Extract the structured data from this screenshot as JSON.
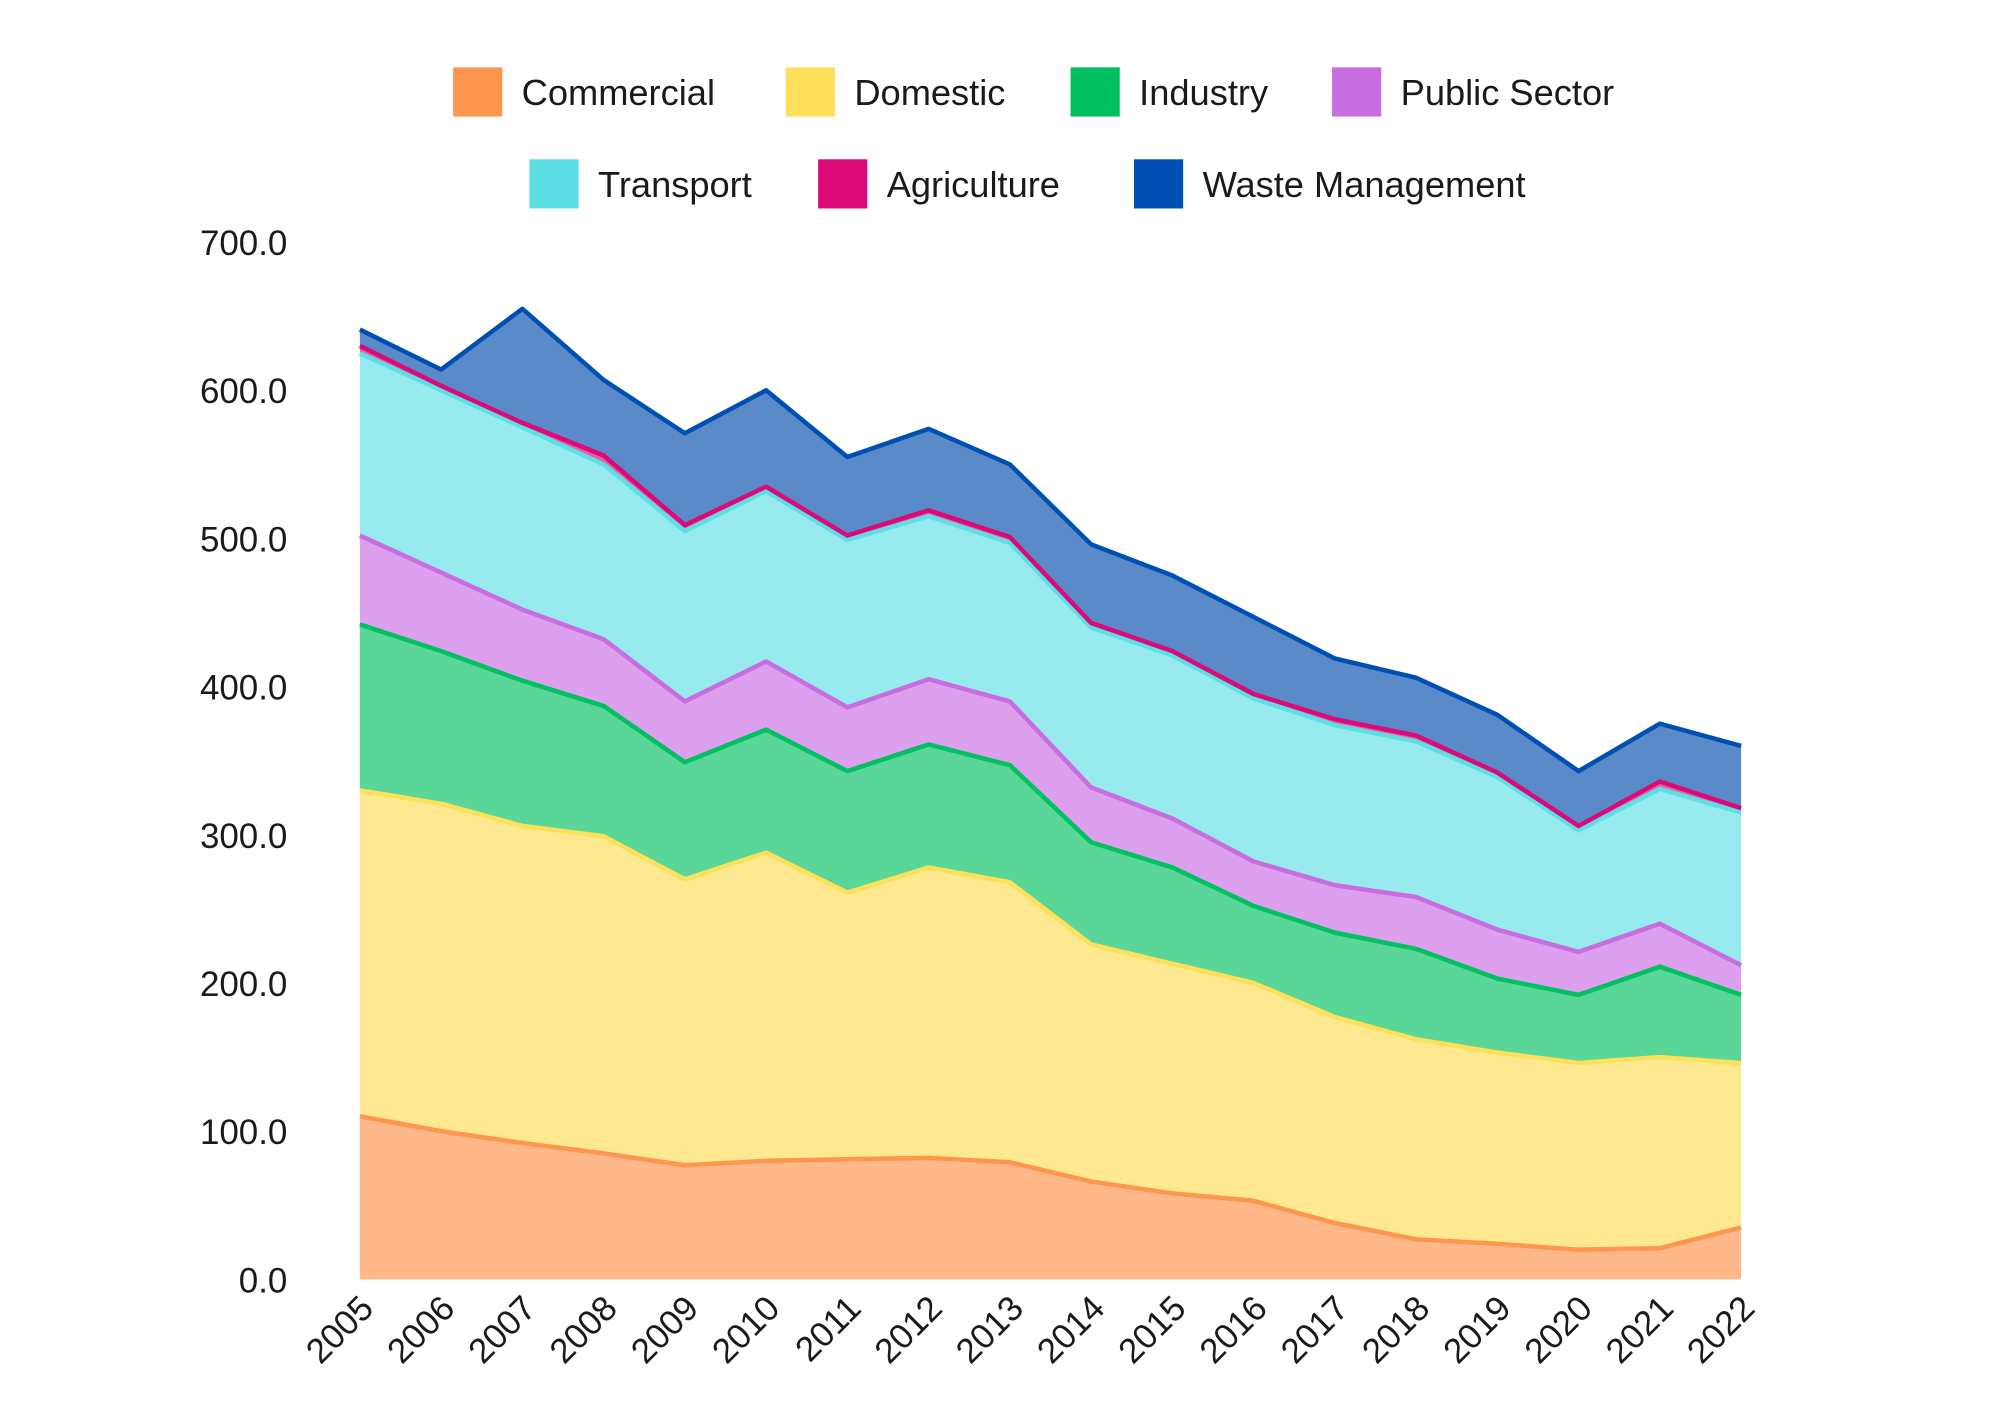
{
  "chart_data": {
    "type": "area",
    "stacked": true,
    "title": "",
    "xlabel": "",
    "ylabel": "",
    "ylim": [
      0,
      700
    ],
    "yticks": [
      "0.0",
      "100.0",
      "200.0",
      "300.0",
      "400.0",
      "500.0",
      "600.0",
      "700.0"
    ],
    "grid": false,
    "legend_position": "top",
    "categories": [
      "2005",
      "2006",
      "2007",
      "2008",
      "2009",
      "2010",
      "2011",
      "2012",
      "2013",
      "2014",
      "2015",
      "2016",
      "2017",
      "2018",
      "2019",
      "2020",
      "2021",
      "2022"
    ],
    "series": [
      {
        "name": "Commercial",
        "line": "#FF9650",
        "fill": "#FFB88A",
        "values": [
          110,
          100,
          92,
          85,
          77,
          80,
          81,
          82,
          79,
          66,
          58,
          53,
          38,
          27,
          24,
          20,
          21,
          35
        ]
      },
      {
        "name": "Domestic",
        "line": "#FFE05A",
        "fill": "#FFE990",
        "values": [
          220,
          221,
          214,
          214,
          193,
          208,
          180,
          196,
          189,
          160,
          155,
          147,
          139,
          135,
          129,
          126,
          129,
          111
        ]
      },
      {
        "name": "Industry",
        "line": "#00C060",
        "fill": "#5AD698",
        "values": [
          112,
          103,
          98,
          88,
          79,
          83,
          82,
          83,
          79,
          69,
          65,
          52,
          57,
          61,
          50,
          46,
          61,
          46
        ]
      },
      {
        "name": "Public Sector",
        "line": "#C86DE0",
        "fill": "#DCA0EE",
        "values": [
          60,
          53,
          48,
          45,
          41,
          46,
          43,
          44,
          43,
          37,
          33,
          30,
          32,
          35,
          33,
          29,
          29,
          20
        ]
      },
      {
        "name": "Transport",
        "line": "#5CE0E6",
        "fill": "#97EBEF",
        "values": [
          123,
          123,
          123,
          118,
          115,
          115,
          113,
          110,
          107,
          108,
          110,
          110,
          108,
          105,
          103,
          82,
          91,
          103
        ]
      },
      {
        "name": "Agriculture",
        "line": "#DC0A78",
        "fill": "#E8609F",
        "values": [
          5,
          3,
          3,
          6,
          4,
          3,
          3,
          4,
          4,
          3,
          3,
          3,
          4,
          4,
          3,
          3,
          5,
          3
        ]
      },
      {
        "name": "Waste Management",
        "line": "#0050B4",
        "fill": "#5A8AC8",
        "values": [
          11,
          11,
          77,
          51,
          62,
          65,
          53,
          55,
          49,
          53,
          51,
          52,
          41,
          39,
          39,
          37,
          39,
          42
        ]
      }
    ]
  }
}
